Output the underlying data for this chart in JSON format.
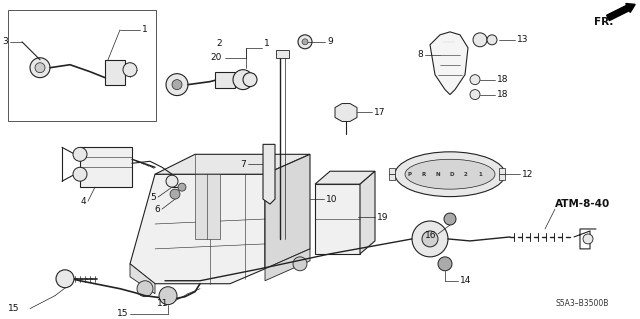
{
  "bg_color": "#ffffff",
  "diagram_code": "ATM-8-40",
  "ref_code": "S5A3–B3500B",
  "fr_label": "FR.",
  "lw_main": 0.8,
  "lw_thin": 0.5,
  "ec": "#222222",
  "fc_light": "#e8e8e8",
  "fc_mid": "#cccccc",
  "fs_label": 6.0,
  "fs_code": 7.5
}
